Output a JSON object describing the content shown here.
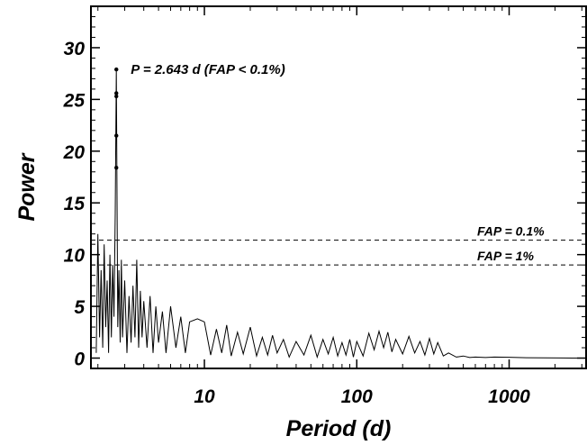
{
  "chart_data": {
    "type": "line",
    "xlabel": "Period (d)",
    "ylabel": "Power",
    "xscale": "log",
    "xlim": [
      1.8,
      3200
    ],
    "ylim": [
      -1,
      34
    ],
    "grid": false,
    "xticks": [
      {
        "value": 10,
        "label": "10"
      },
      {
        "value": 100,
        "label": "100"
      },
      {
        "value": 1000,
        "label": "1000"
      }
    ],
    "yticks": [
      {
        "value": 0,
        "label": "0"
      },
      {
        "value": 5,
        "label": "5"
      },
      {
        "value": 10,
        "label": "10"
      },
      {
        "value": 15,
        "label": "15"
      },
      {
        "value": 20,
        "label": "20"
      },
      {
        "value": 25,
        "label": "25"
      },
      {
        "value": 30,
        "label": "30"
      }
    ],
    "peak": {
      "x": 2.643,
      "y": 27.9
    },
    "peak_markers": [
      27.9,
      25.6,
      25.3,
      21.5,
      18.4
    ],
    "peak_label": "P = 2.643 d   (FAP < 0.1%)",
    "fap_lines": [
      {
        "value": 11.4,
        "label": "FAP = 0.1%"
      },
      {
        "value": 9.0,
        "label": "FAP = 1%"
      }
    ],
    "series": [
      {
        "x": [
          1.95,
          2.0,
          2.05,
          2.1,
          2.15,
          2.2,
          2.25,
          2.3,
          2.35,
          2.4,
          2.45,
          2.5,
          2.55,
          2.6,
          2.643,
          2.7,
          2.75,
          2.8,
          2.85,
          2.9,
          3.0,
          3.1,
          3.2,
          3.3,
          3.4,
          3.5,
          3.6,
          3.7,
          3.8,
          3.9,
          4.0,
          4.2,
          4.4,
          4.6,
          4.8,
          5.0,
          5.3,
          5.6,
          6.0,
          6.5,
          7.0,
          7.5,
          8.0,
          9.0,
          10,
          11,
          12,
          13,
          14,
          15,
          16.5,
          18,
          20,
          22,
          24,
          26,
          28,
          30,
          33,
          36,
          40,
          45,
          50,
          55,
          60,
          65,
          70,
          75,
          80,
          85,
          90,
          95,
          100,
          110,
          120,
          130,
          140,
          150,
          160,
          170,
          180,
          200,
          220,
          240,
          260,
          280,
          300,
          320,
          340,
          370,
          400,
          450,
          500,
          550,
          600,
          700,
          800,
          1000,
          1300,
          1700,
          2200,
          2800,
          3200
        ],
        "y": [
          0.5,
          12.0,
          2.0,
          8.5,
          1.0,
          11.0,
          3.0,
          7.5,
          0.5,
          10.0,
          2.0,
          9.0,
          4.0,
          14.0,
          27.9,
          3.0,
          8.5,
          1.5,
          9.5,
          2.0,
          7.5,
          0.5,
          6.0,
          1.5,
          7.0,
          2.0,
          9.5,
          1.0,
          6.5,
          2.0,
          5.5,
          1.0,
          6.0,
          0.5,
          5.0,
          1.5,
          4.5,
          0.5,
          5.0,
          1.0,
          4.0,
          0.5,
          3.5,
          3.8,
          3.5,
          0.3,
          2.8,
          0.5,
          3.2,
          0.2,
          2.5,
          0.4,
          3.0,
          0.2,
          2.0,
          0.3,
          2.2,
          0.5,
          1.8,
          0.1,
          1.6,
          0.3,
          2.2,
          0.1,
          1.8,
          0.4,
          2.0,
          0.2,
          1.5,
          0.3,
          1.8,
          0.1,
          1.6,
          0.2,
          2.4,
          0.8,
          2.6,
          1.0,
          2.5,
          0.6,
          1.8,
          0.4,
          2.1,
          0.5,
          1.6,
          0.3,
          1.9,
          0.4,
          1.5,
          0.2,
          0.5,
          0.1,
          0.2,
          0.05,
          0.1,
          0.05,
          0.1,
          0.08,
          0.04,
          0.02,
          0.01,
          0.0,
          0.0
        ]
      }
    ]
  }
}
